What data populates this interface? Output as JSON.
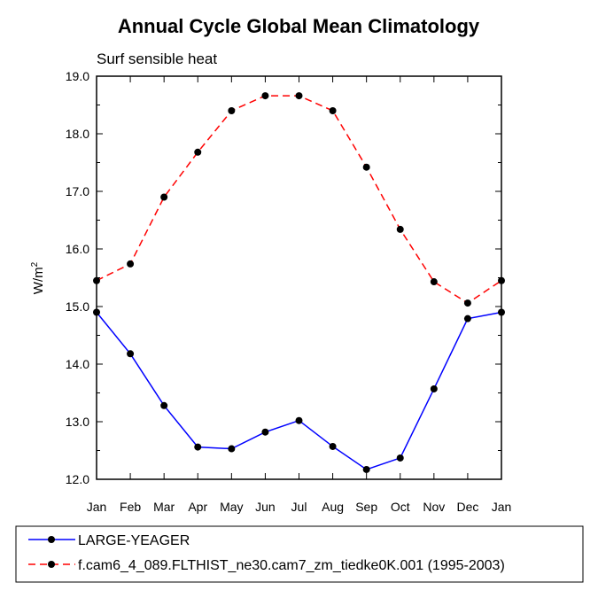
{
  "chart_data": {
    "type": "line",
    "title": "Annual Cycle Global Mean Climatology",
    "subtitle": "Surf sensible heat",
    "xlabel": "",
    "ylabel": "W/m",
    "ylabel_sup": "2",
    "categories": [
      "Jan",
      "Feb",
      "Mar",
      "Apr",
      "May",
      "Jun",
      "Jul",
      "Aug",
      "Sep",
      "Oct",
      "Nov",
      "Dec",
      "Jan"
    ],
    "ylim": [
      12.0,
      19.0
    ],
    "yticks": [
      "12.0",
      "13.0",
      "14.0",
      "15.0",
      "16.0",
      "17.0",
      "18.0",
      "19.0"
    ],
    "series": [
      {
        "name": "LARGE-YEAGER",
        "color": "#0000ff",
        "style": "solid",
        "values": [
          14.9,
          14.18,
          13.28,
          12.56,
          12.53,
          12.82,
          13.02,
          12.57,
          12.17,
          12.37,
          13.57,
          14.79,
          14.9
        ]
      },
      {
        "name": "f.cam6_4_089.FLTHIST_ne30.cam7_zm_tiedke0K.001 (1995-2003)",
        "color": "#ff0000",
        "style": "dashed",
        "values": [
          15.45,
          15.74,
          16.9,
          17.68,
          18.4,
          18.66,
          18.66,
          18.4,
          17.42,
          16.34,
          15.43,
          15.06,
          15.45
        ]
      }
    ],
    "legend": "bottom"
  }
}
